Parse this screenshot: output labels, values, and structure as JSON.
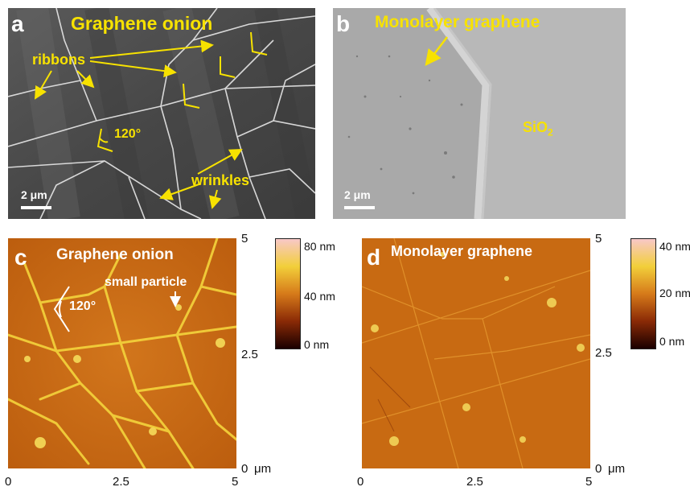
{
  "panels": {
    "a": {
      "letter": "a",
      "title": "Graphene onion",
      "labels": {
        "ribbons": "ribbons",
        "angle": "120°",
        "wrinkles": "wrinkles"
      },
      "scalebar": "2 μm"
    },
    "b": {
      "letter": "b",
      "title": "Monolayer graphene",
      "substrate_main": "SiO",
      "substrate_sub": "2",
      "scalebar": "2 μm"
    },
    "c": {
      "letter": "c",
      "title": "Graphene onion",
      "labels": {
        "particle": "small particle",
        "angle": "120°"
      },
      "colorbar": {
        "top": "80 nm",
        "mid": "40 nm",
        "bottom": "0 nm"
      },
      "xticks": [
        "0",
        "2.5",
        "5"
      ],
      "yticks": [
        "5",
        "2.5",
        "0"
      ],
      "unit": "μm"
    },
    "d": {
      "letter": "d",
      "title": "Monolayer graphene",
      "colorbar": {
        "top": "40 nm",
        "mid": "20 nm",
        "bottom": "0 nm"
      },
      "xticks": [
        "0",
        "2.5",
        "5"
      ],
      "yticks": [
        "5",
        "2.5",
        "0"
      ],
      "unit": "μm"
    }
  },
  "colors": {
    "annotation_yellow": "#f7e200",
    "sem_dark": "#4e4e4e",
    "sem_light": "#b3b3b3",
    "afm_orange": "#c9650f",
    "afm_highlight": "#f2cf3a"
  }
}
